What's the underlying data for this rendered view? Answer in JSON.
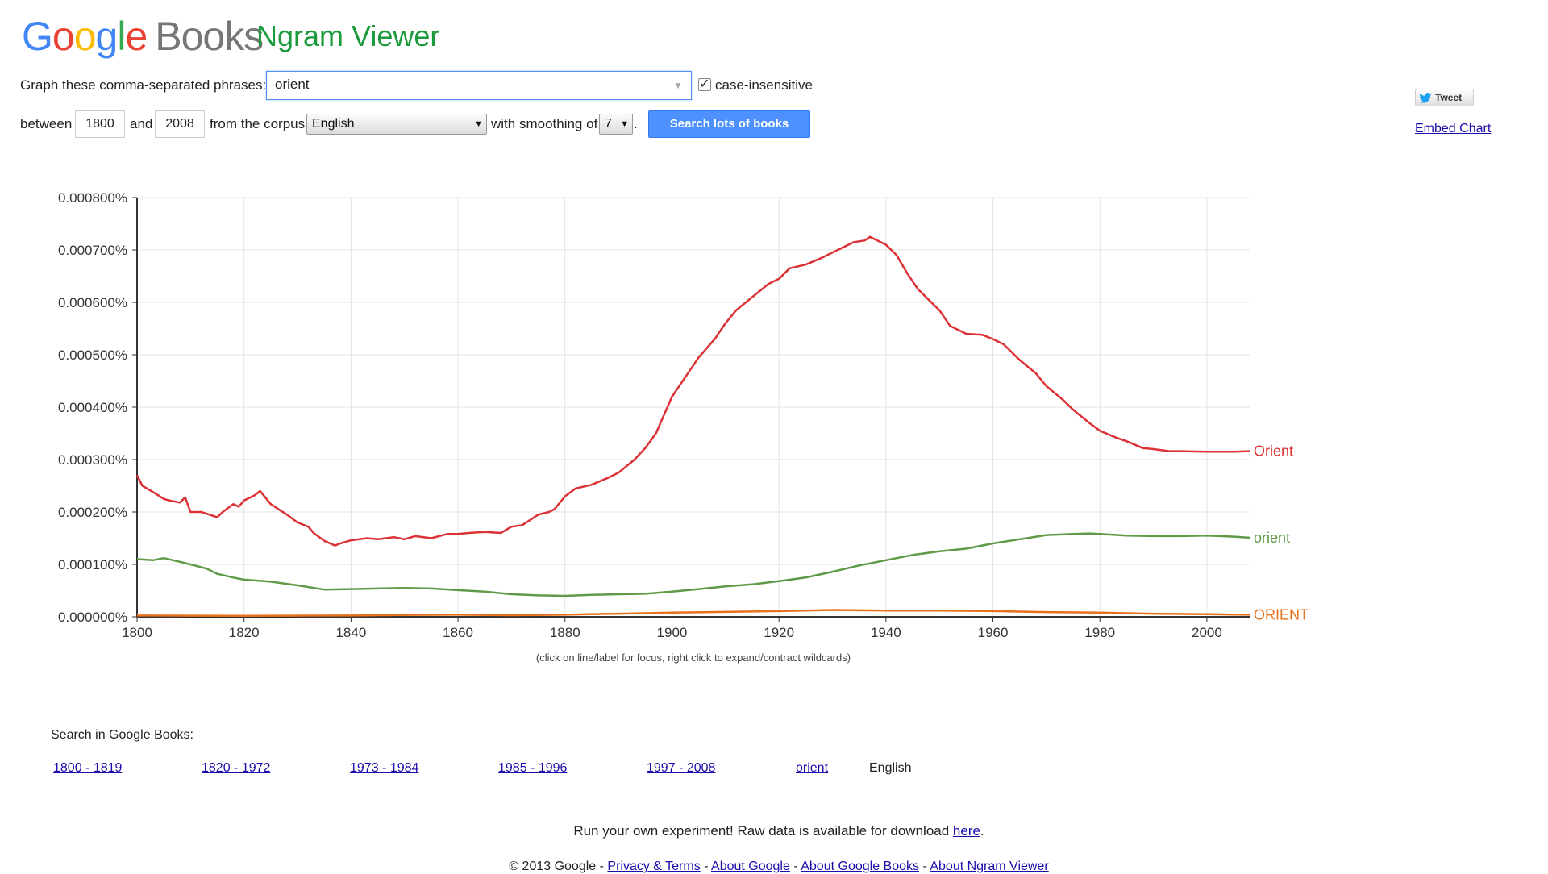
{
  "header": {
    "logo_letters": [
      "G",
      "o",
      "o",
      "g",
      "l",
      "e"
    ],
    "logo_books": "Books",
    "app_title": "Ngram Viewer"
  },
  "form": {
    "phrases_label": "Graph these comma-separated phrases:",
    "phrases_value": "orient",
    "case_insensitive_label": "case-insensitive",
    "case_insensitive_checked": true,
    "between_label": "between",
    "start_year": "1800",
    "and_label": "and",
    "end_year": "2008",
    "corpus_label": "from the corpus",
    "corpus_value": "English",
    "smoothing_label": "with smoothing of",
    "smoothing_value": "7",
    "period": ".",
    "search_button": "Search lots of books"
  },
  "share": {
    "tweet_label": "Tweet",
    "embed_label": "Embed Chart"
  },
  "chart_data": {
    "type": "line",
    "x_ticks": [
      "1800",
      "1820",
      "1840",
      "1860",
      "1880",
      "1900",
      "1920",
      "1940",
      "1960",
      "1980",
      "2000"
    ],
    "y_ticks": [
      "0.000000%",
      "0.000100%",
      "0.000200%",
      "0.000300%",
      "0.000400%",
      "0.000500%",
      "0.000600%",
      "0.000700%",
      "0.000800%"
    ],
    "xlim": [
      1800,
      2008
    ],
    "ylim": [
      0,
      0.0008
    ],
    "grid": true,
    "legend_position": "end-of-line labels (right)",
    "series": [
      {
        "name": "Orient",
        "color": "#db3236",
        "x": [
          1800,
          1801,
          1803,
          1805,
          1806,
          1808,
          1809,
          1810,
          1812,
          1815,
          1816,
          1818,
          1819,
          1820,
          1822,
          1823,
          1825,
          1828,
          1830,
          1832,
          1833,
          1835,
          1837,
          1838,
          1840,
          1843,
          1845,
          1848,
          1850,
          1852,
          1855,
          1858,
          1860,
          1862,
          1865,
          1868,
          1870,
          1872,
          1875,
          1877,
          1878,
          1880,
          1882,
          1885,
          1888,
          1890,
          1893,
          1895,
          1897,
          1900,
          1903,
          1905,
          1908,
          1910,
          1912,
          1915,
          1918,
          1920,
          1922,
          1925,
          1928,
          1930,
          1932,
          1934,
          1936,
          1937,
          1938,
          1940,
          1942,
          1944,
          1946,
          1948,
          1950,
          1952,
          1955,
          1958,
          1960,
          1962,
          1965,
          1968,
          1970,
          1973,
          1975,
          1978,
          1980,
          1983,
          1985,
          1988,
          1990,
          1993,
          1995,
          2000,
          2003,
          2005,
          2008
        ],
        "values": [
          0.00027,
          0.00025,
          0.000238,
          0.000225,
          0.000222,
          0.000218,
          0.000228,
          0.0002,
          0.0002,
          0.00019,
          0.0002,
          0.000215,
          0.00021,
          0.000222,
          0.000232,
          0.00024,
          0.000215,
          0.000195,
          0.00018,
          0.000172,
          0.00016,
          0.000145,
          0.000136,
          0.00014,
          0.000146,
          0.00015,
          0.000148,
          0.000152,
          0.000148,
          0.000154,
          0.00015,
          0.000158,
          0.000158,
          0.00016,
          0.000162,
          0.00016,
          0.000172,
          0.000175,
          0.000195,
          0.0002,
          0.000205,
          0.00023,
          0.000245,
          0.000252,
          0.000265,
          0.000275,
          0.0003,
          0.000322,
          0.00035,
          0.00042,
          0.000465,
          0.000495,
          0.00053,
          0.00056,
          0.000585,
          0.00061,
          0.000635,
          0.000645,
          0.000665,
          0.000672,
          0.000685,
          0.000695,
          0.000705,
          0.000715,
          0.000718,
          0.000725,
          0.00072,
          0.00071,
          0.00069,
          0.000655,
          0.000625,
          0.000605,
          0.000585,
          0.000555,
          0.00054,
          0.000538,
          0.00053,
          0.00052,
          0.00049,
          0.000465,
          0.00044,
          0.000415,
          0.000395,
          0.00037,
          0.000355,
          0.000342,
          0.000335,
          0.000322,
          0.00032,
          0.000316,
          0.000316,
          0.000315,
          0.000315,
          0.000315,
          0.000316
        ]
      },
      {
        "name": "orient",
        "color": "#5e9a47",
        "x": [
          1800,
          1803,
          1805,
          1808,
          1810,
          1813,
          1815,
          1818,
          1820,
          1825,
          1830,
          1835,
          1840,
          1845,
          1850,
          1855,
          1860,
          1865,
          1870,
          1875,
          1880,
          1885,
          1890,
          1895,
          1900,
          1905,
          1910,
          1915,
          1920,
          1925,
          1930,
          1935,
          1940,
          1945,
          1950,
          1955,
          1960,
          1965,
          1970,
          1975,
          1978,
          1980,
          1985,
          1990,
          1995,
          2000,
          2005,
          2008
        ],
        "values": [
          0.00011,
          0.000108,
          0.000112,
          0.000105,
          0.0001,
          9.2e-05,
          8.2e-05,
          7.5e-05,
          7.1e-05,
          6.7e-05,
          6e-05,
          5.2e-05,
          5.3e-05,
          5.4e-05,
          5.5e-05,
          5.4e-05,
          5.1e-05,
          4.8e-05,
          4.3e-05,
          4.1e-05,
          4e-05,
          4.2e-05,
          4.3e-05,
          4.4e-05,
          4.8e-05,
          5.3e-05,
          5.8e-05,
          6.2e-05,
          6.8e-05,
          7.5e-05,
          8.6e-05,
          9.8e-05,
          0.000108,
          0.000118,
          0.000125,
          0.00013,
          0.00014,
          0.000148,
          0.000156,
          0.000158,
          0.000159,
          0.000158,
          0.000155,
          0.000154,
          0.000154,
          0.000155,
          0.000153,
          0.000151
        ]
      },
      {
        "name": "ORIENT",
        "color": "#e8711c",
        "x": [
          1800,
          1820,
          1840,
          1850,
          1860,
          1870,
          1880,
          1900,
          1920,
          1930,
          1940,
          1950,
          1960,
          1970,
          1980,
          1990,
          2000,
          2008
        ],
        "values": [
          2.5e-06,
          2e-06,
          2.5e-06,
          3.5e-06,
          4e-06,
          3e-06,
          4e-06,
          8e-06,
          1.1e-05,
          1.3e-05,
          1.2e-05,
          1.2e-05,
          1.1e-05,
          9e-06,
          8e-06,
          6e-06,
          5e-06,
          4e-06
        ]
      }
    ]
  },
  "chart_hint": "(click on line/label for focus, right click to expand/contract wildcards)",
  "search_in": {
    "label": "Search in Google Books:",
    "ranges": [
      "1800 - 1819",
      "1820 - 1972",
      "1973 - 1984",
      "1985 - 1996",
      "1997 - 2008"
    ],
    "term": "orient",
    "language": "English"
  },
  "raw_data": {
    "text": "Run your own experiment! Raw data is available for download",
    "link": "here",
    "period": "."
  },
  "footer": {
    "copyright": "© 2013 Google",
    "sep": " - ",
    "links": [
      "Privacy & Terms",
      "About Google",
      "About Google Books",
      "About Ngram Viewer"
    ]
  }
}
